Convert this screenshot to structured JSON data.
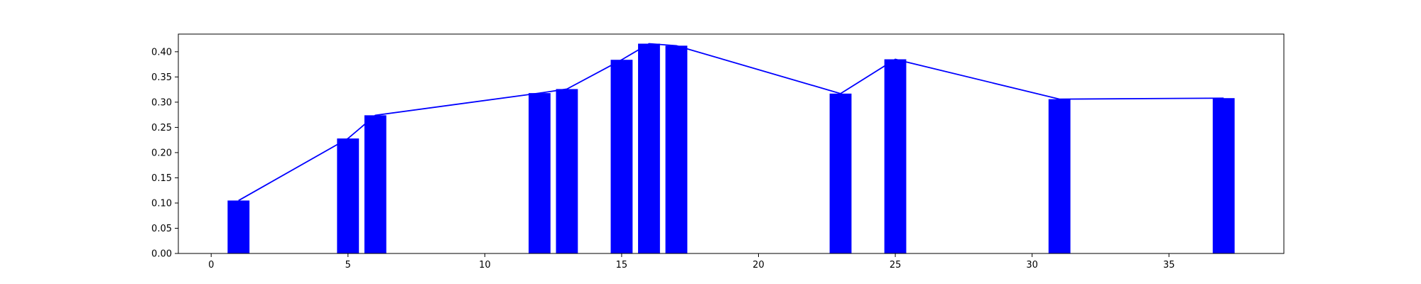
{
  "chart_data": {
    "type": "bar",
    "title": "",
    "xlabel": "",
    "ylabel": "",
    "xlim": [
      -1.2,
      39.2
    ],
    "ylim": [
      0,
      0.435
    ],
    "grid": false,
    "legend": "none",
    "bar_color": "#0000ff",
    "line_color": "#0000ff",
    "bar_width": 0.8,
    "x": [
      1,
      5,
      6,
      12,
      13,
      15,
      16,
      17,
      23,
      25,
      31,
      37
    ],
    "values": [
      0.105,
      0.228,
      0.274,
      0.318,
      0.326,
      0.384,
      0.416,
      0.412,
      0.317,
      0.385,
      0.306,
      0.308
    ],
    "xticks": [
      0,
      5,
      10,
      15,
      20,
      25,
      30,
      35
    ],
    "xtick_labels": [
      "0",
      "5",
      "10",
      "15",
      "20",
      "25",
      "30",
      "35"
    ],
    "yticks": [
      0.0,
      0.05,
      0.1,
      0.15,
      0.2,
      0.25,
      0.3,
      0.35,
      0.4
    ],
    "ytick_labels": [
      "0.00",
      "0.05",
      "0.10",
      "0.15",
      "0.20",
      "0.25",
      "0.30",
      "0.35",
      "0.40"
    ]
  }
}
